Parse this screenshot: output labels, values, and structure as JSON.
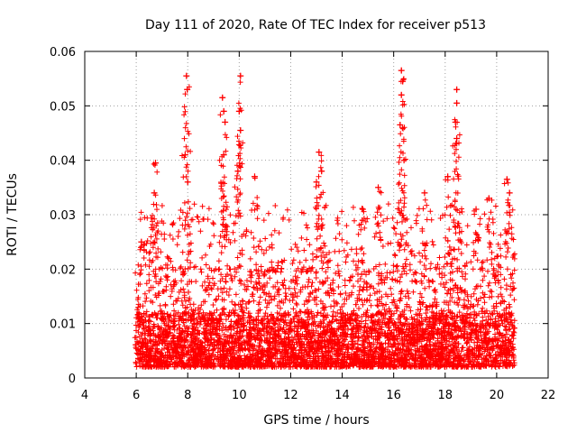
{
  "chart_data": {
    "type": "scatter",
    "title": "Day 111 of 2020, Rate Of TEC Index for receiver p513",
    "xlabel": "GPS time / hours",
    "ylabel": "ROTI / TECUs",
    "xlim": [
      4,
      22
    ],
    "ylim": [
      0,
      0.06
    ],
    "xticks": [
      "4",
      "6",
      "8",
      "10",
      "12",
      "14",
      "16",
      "18",
      "20",
      "22"
    ],
    "yticks": [
      "0",
      "0.01",
      "0.02",
      "0.03",
      "0.04",
      "0.05",
      "0.06"
    ],
    "grid": true,
    "marker": "+",
    "series_color": "#ff0000",
    "series": [
      {
        "name": "ROTI",
        "x_range": [
          5.95,
          20.7
        ],
        "typical_range": [
          0.002,
          0.02
        ],
        "points": [
          {
            "x": 6.2,
            "y": 0.025
          },
          {
            "x": 6.75,
            "y": 0.0395
          },
          {
            "x": 6.7,
            "y": 0.034
          },
          {
            "x": 7.9,
            "y": 0.041
          },
          {
            "x": 7.95,
            "y": 0.0555
          },
          {
            "x": 7.98,
            "y": 0.053
          },
          {
            "x": 8.0,
            "y": 0.036
          },
          {
            "x": 9.35,
            "y": 0.0515
          },
          {
            "x": 9.4,
            "y": 0.049
          },
          {
            "x": 9.45,
            "y": 0.047
          },
          {
            "x": 9.4,
            "y": 0.041
          },
          {
            "x": 10.05,
            "y": 0.0555
          },
          {
            "x": 10.0,
            "y": 0.049
          },
          {
            "x": 10.05,
            "y": 0.0455
          },
          {
            "x": 9.95,
            "y": 0.038
          },
          {
            "x": 10.6,
            "y": 0.037
          },
          {
            "x": 13.1,
            "y": 0.0415
          },
          {
            "x": 13.2,
            "y": 0.038
          },
          {
            "x": 13.0,
            "y": 0.036
          },
          {
            "x": 14.8,
            "y": 0.031
          },
          {
            "x": 15.4,
            "y": 0.035
          },
          {
            "x": 16.3,
            "y": 0.0565
          },
          {
            "x": 16.35,
            "y": 0.0545
          },
          {
            "x": 16.3,
            "y": 0.052
          },
          {
            "x": 16.25,
            "y": 0.0465
          },
          {
            "x": 16.4,
            "y": 0.04
          },
          {
            "x": 17.2,
            "y": 0.034
          },
          {
            "x": 18.1,
            "y": 0.037
          },
          {
            "x": 18.45,
            "y": 0.053
          },
          {
            "x": 18.45,
            "y": 0.0505
          },
          {
            "x": 18.4,
            "y": 0.047
          },
          {
            "x": 18.45,
            "y": 0.044
          },
          {
            "x": 19.2,
            "y": 0.031
          },
          {
            "x": 19.7,
            "y": 0.033
          },
          {
            "x": 20.4,
            "y": 0.0365
          },
          {
            "x": 20.5,
            "y": 0.034
          }
        ]
      }
    ]
  }
}
